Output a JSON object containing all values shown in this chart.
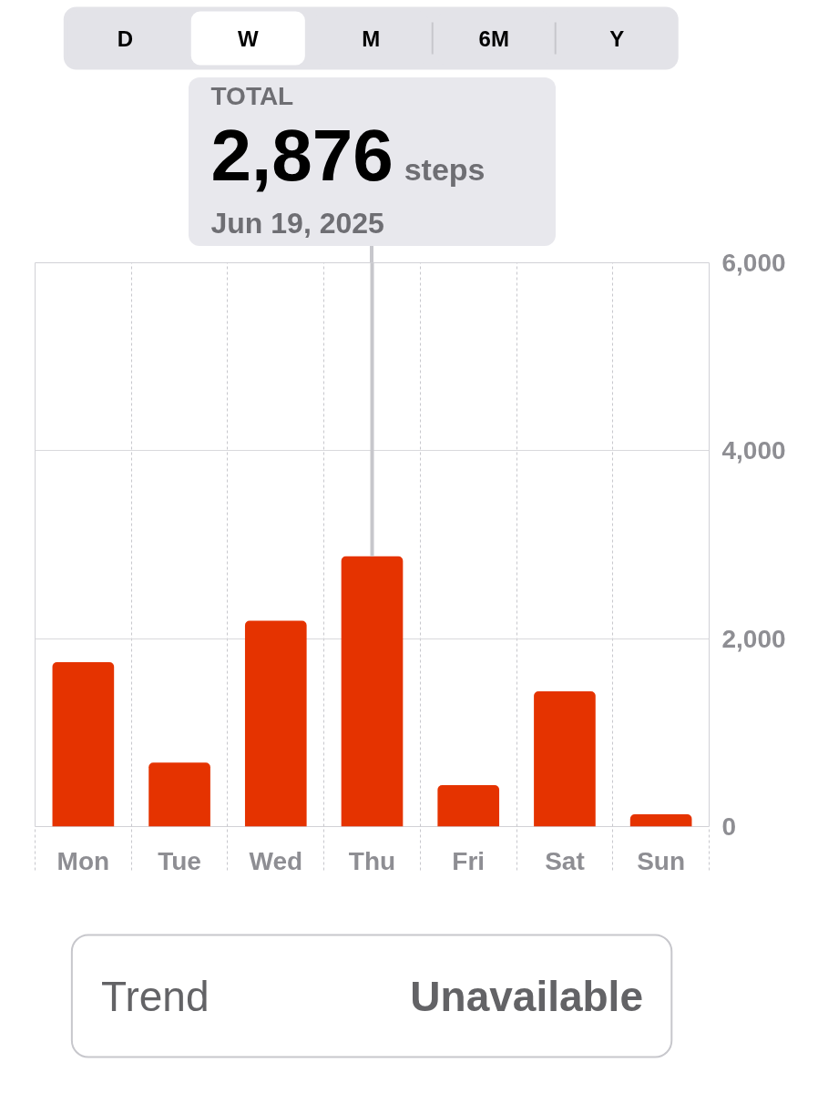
{
  "chart_data": [
    {
      "type": "other",
      "categories": [
        "D",
        "W",
        "M",
        "6M",
        "Y"
      ],
      "colors": [
        "#e3e3e8",
        "#ffffff",
        "#e3e3e8",
        "#e3e3e8",
        "#e3e3e8"
      ]
    },
    {
      "type": "bar",
      "categories": [
        "Mon",
        "Tue",
        "Wed",
        "Thu",
        "Fri",
        "Sat",
        "Sun"
      ],
      "values": [
        1750,
        680,
        2190,
        2876,
        440,
        1440,
        130
      ],
      "color": "#e53300",
      "ylim": [
        0,
        6000
      ],
      "yticks": [
        0,
        {
          "value": 2000,
          "label": "2,000"
        },
        {
          "value": 4000,
          "label": "4,000"
        },
        {
          "value": 6000,
          "label": "6,000"
        }
      ],
      "grid": true,
      "annotations": [
        "TOTAL",
        {
          "text": "2,876",
          "x": "Thu",
          "y": 2876
        },
        "steps",
        {
          "text": "Jun 19, 2025",
          "x": "Thu",
          "y": 2876
        }
      ]
    },
    {
      "type": "other",
      "annotations": [
        "Trend",
        "Unavailable"
      ]
    }
  ]
}
